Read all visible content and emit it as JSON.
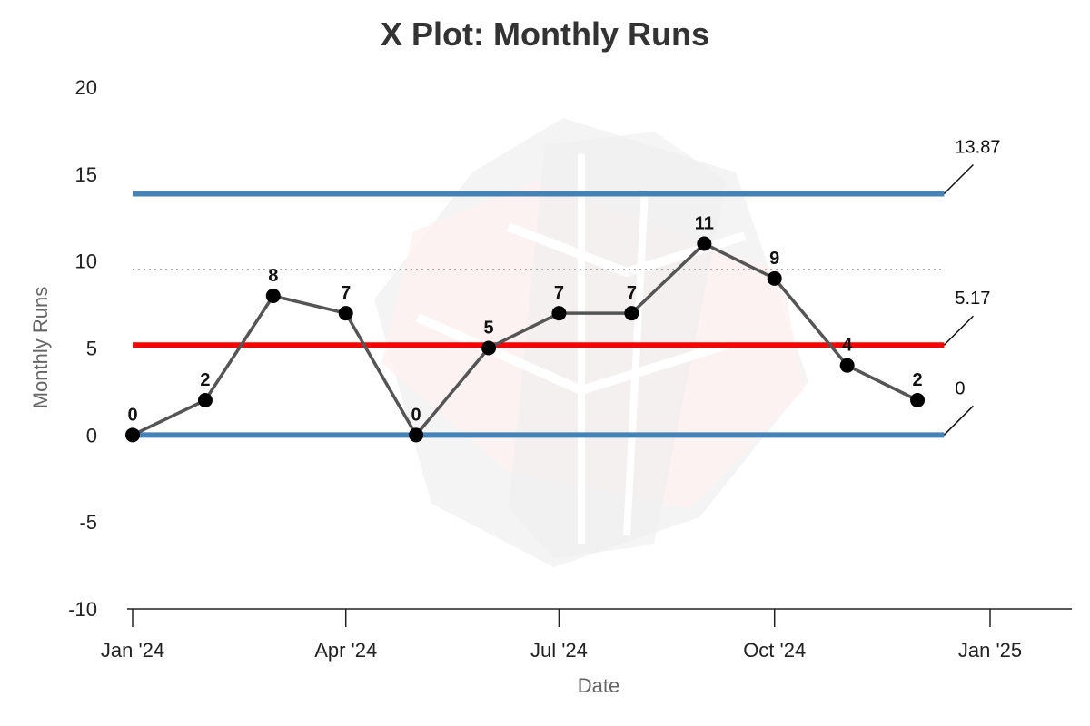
{
  "chart_data": {
    "type": "line",
    "title": "X Plot: Monthly Runs",
    "xlabel": "Date",
    "ylabel": "Monthly Runs",
    "x_range": [
      "2024-01-01",
      "2025-01-01"
    ],
    "ylim": [
      -10,
      20
    ],
    "y_ticks": [
      "-10",
      "-5",
      "0",
      "5",
      "10",
      "15",
      "20"
    ],
    "x_ticks": [
      {
        "date": "2024-01-01",
        "label": "Jan '24"
      },
      {
        "date": "2024-04-01",
        "label": "Apr '24"
      },
      {
        "date": "2024-07-01",
        "label": "Jul '24"
      },
      {
        "date": "2024-10-01",
        "label": "Oct '24"
      },
      {
        "date": "2025-01-01",
        "label": "Jan '25"
      }
    ],
    "grid": false,
    "series": [
      {
        "color": "#555555",
        "points": [
          {
            "x": "2024-01-01",
            "y": 0,
            "label": "0"
          },
          {
            "x": "2024-02-01",
            "y": 2,
            "label": "2"
          },
          {
            "x": "2024-03-01",
            "y": 8,
            "label": "8"
          },
          {
            "x": "2024-04-01",
            "y": 7,
            "label": "7"
          },
          {
            "x": "2024-05-01",
            "y": 0,
            "label": "0"
          },
          {
            "x": "2024-06-01",
            "y": 5,
            "label": "5"
          },
          {
            "x": "2024-07-01",
            "y": 7,
            "label": "7"
          },
          {
            "x": "2024-08-01",
            "y": 7,
            "label": "7"
          },
          {
            "x": "2024-09-01",
            "y": 11,
            "label": "11"
          },
          {
            "x": "2024-10-01",
            "y": 9,
            "label": "9"
          },
          {
            "x": "2024-11-01",
            "y": 4,
            "label": "4"
          },
          {
            "x": "2024-12-01",
            "y": 2,
            "label": "2"
          }
        ]
      }
    ],
    "limit_lines": [
      {
        "role": "upper-limit",
        "y": 13.87,
        "label": "13.87",
        "color": "#4682b4",
        "style": "solid"
      },
      {
        "role": "center-line",
        "y": 5.17,
        "label": "5.17",
        "color": "#ff0000",
        "style": "solid"
      },
      {
        "role": "lower-limit",
        "y": 0,
        "label": "0",
        "color": "#4682b4",
        "style": "solid"
      },
      {
        "role": "reference-line",
        "y": 9.5,
        "label": "",
        "color": "#555555",
        "style": "dotted"
      }
    ],
    "watermark": "logo"
  }
}
